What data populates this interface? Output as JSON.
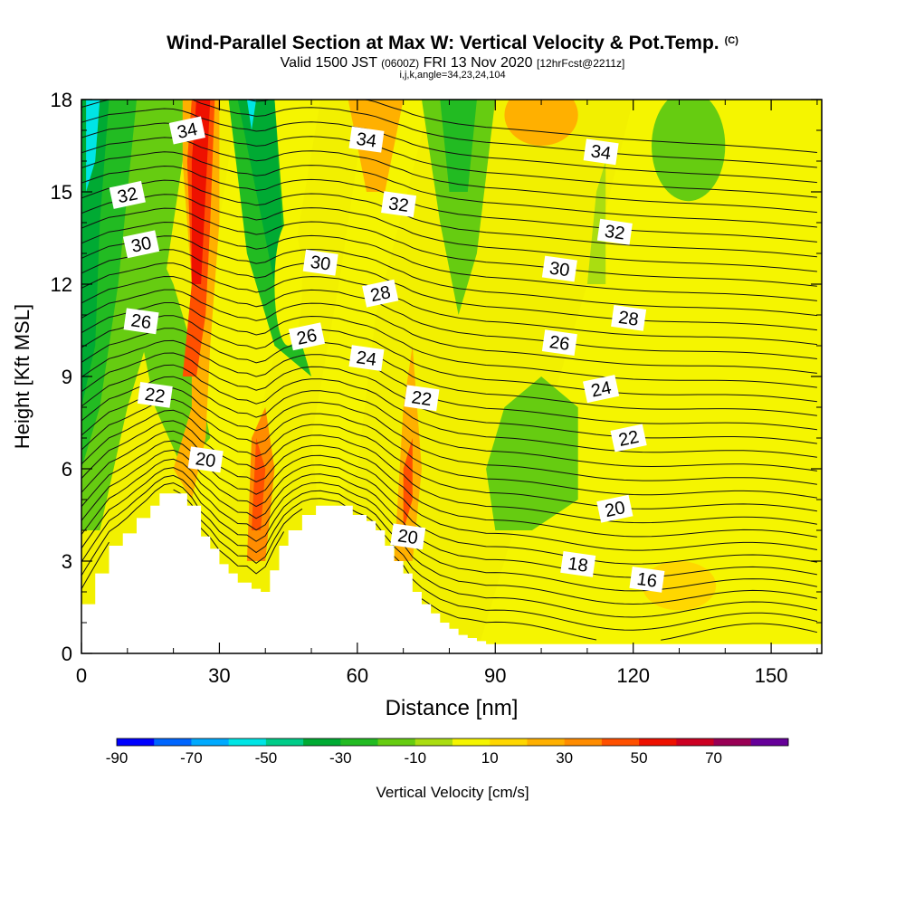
{
  "title": "Wind-Parallel Section at Max W: Vertical Velocity & Pot.Temp.",
  "title_corner": "(C)",
  "subtitle_main": "Valid 1500 JST",
  "subtitle_utc": "(0600Z)",
  "subtitle_date": "FRI 13 Nov 2020",
  "subtitle_fcst": "[12hrFcst@2211z]",
  "subtitle2": "i,j,k,angle=34,23,24,104",
  "chart_data": {
    "type": "heatmap",
    "title": "Wind-Parallel Section at Max W: Vertical Velocity & Pot.Temp.",
    "xlabel": "Distance [nm]",
    "ylabel": "Height [Kft MSL]",
    "xlim": [
      0,
      161
    ],
    "ylim": [
      0,
      18
    ],
    "xticks": [
      0,
      30,
      60,
      90,
      120,
      150
    ],
    "yticks": [
      0,
      3,
      6,
      9,
      12,
      15,
      18
    ],
    "colorbar": {
      "label": "Vertical Velocity [cm/s]",
      "ticks": [
        -90,
        -70,
        -50,
        -30,
        -10,
        10,
        30,
        50,
        70
      ],
      "levels": [
        -90,
        -80,
        -70,
        -60,
        -50,
        -40,
        -30,
        -20,
        -10,
        0,
        10,
        20,
        30,
        40,
        50,
        60,
        70,
        80
      ],
      "colors": [
        "#0000ff",
        "#0066ff",
        "#00aaff",
        "#00e5e5",
        "#00cc88",
        "#00aa33",
        "#22bb22",
        "#66cc11",
        "#aadd11",
        "#f5f500",
        "#ffd700",
        "#ffb000",
        "#ff8c00",
        "#ff5000",
        "#ee1100",
        "#cc0022",
        "#990055",
        "#660099"
      ]
    },
    "terrain_height_kft": {
      "x": [
        0,
        3,
        6,
        9,
        12,
        15,
        17,
        20,
        23,
        26,
        28,
        30,
        32,
        34,
        36,
        37,
        39,
        41,
        43,
        45,
        48,
        51,
        54,
        56,
        59,
        62,
        64,
        66,
        68,
        70,
        72,
        74,
        76,
        78,
        80,
        82,
        84,
        86,
        88,
        90,
        161
      ],
      "y": [
        1.6,
        2.6,
        3.5,
        3.9,
        4.4,
        4.8,
        5.2,
        5.2,
        4.8,
        3.8,
        3.4,
        2.9,
        2.6,
        2.3,
        2.3,
        2.1,
        2.0,
        2.7,
        3.5,
        4.0,
        4.5,
        4.8,
        4.8,
        4.8,
        4.5,
        4.3,
        4.0,
        3.5,
        3.0,
        2.6,
        2.0,
        1.6,
        1.3,
        1.0,
        0.8,
        0.6,
        0.5,
        0.4,
        0.3,
        0.3,
        0.3
      ]
    },
    "theta_labels": [
      {
        "value": 34,
        "x": 23,
        "y": 17.0
      },
      {
        "value": 34,
        "x": 62,
        "y": 16.7
      },
      {
        "value": 34,
        "x": 113,
        "y": 16.3
      },
      {
        "value": 32,
        "x": 10,
        "y": 14.9
      },
      {
        "value": 32,
        "x": 69,
        "y": 14.6
      },
      {
        "value": 32,
        "x": 116,
        "y": 13.7
      },
      {
        "value": 30,
        "x": 13,
        "y": 13.3
      },
      {
        "value": 30,
        "x": 52,
        "y": 12.7
      },
      {
        "value": 30,
        "x": 104,
        "y": 12.5
      },
      {
        "value": 28,
        "x": 65,
        "y": 11.7
      },
      {
        "value": 28,
        "x": 119,
        "y": 10.9
      },
      {
        "value": 26,
        "x": 13,
        "y": 10.8
      },
      {
        "value": 26,
        "x": 49,
        "y": 10.3
      },
      {
        "value": 26,
        "x": 104,
        "y": 10.1
      },
      {
        "value": 24,
        "x": 62,
        "y": 9.6
      },
      {
        "value": 24,
        "x": 113,
        "y": 8.6
      },
      {
        "value": 22,
        "x": 16,
        "y": 8.4
      },
      {
        "value": 22,
        "x": 74,
        "y": 8.3
      },
      {
        "value": 22,
        "x": 119,
        "y": 7.0
      },
      {
        "value": 20,
        "x": 27,
        "y": 6.3
      },
      {
        "value": 20,
        "x": 71,
        "y": 3.8
      },
      {
        "value": 20,
        "x": 116,
        "y": 4.7
      },
      {
        "value": 18,
        "x": 108,
        "y": 2.9
      },
      {
        "value": 16,
        "x": 123,
        "y": 2.4
      }
    ],
    "grid": false,
    "legend": "bottom"
  }
}
